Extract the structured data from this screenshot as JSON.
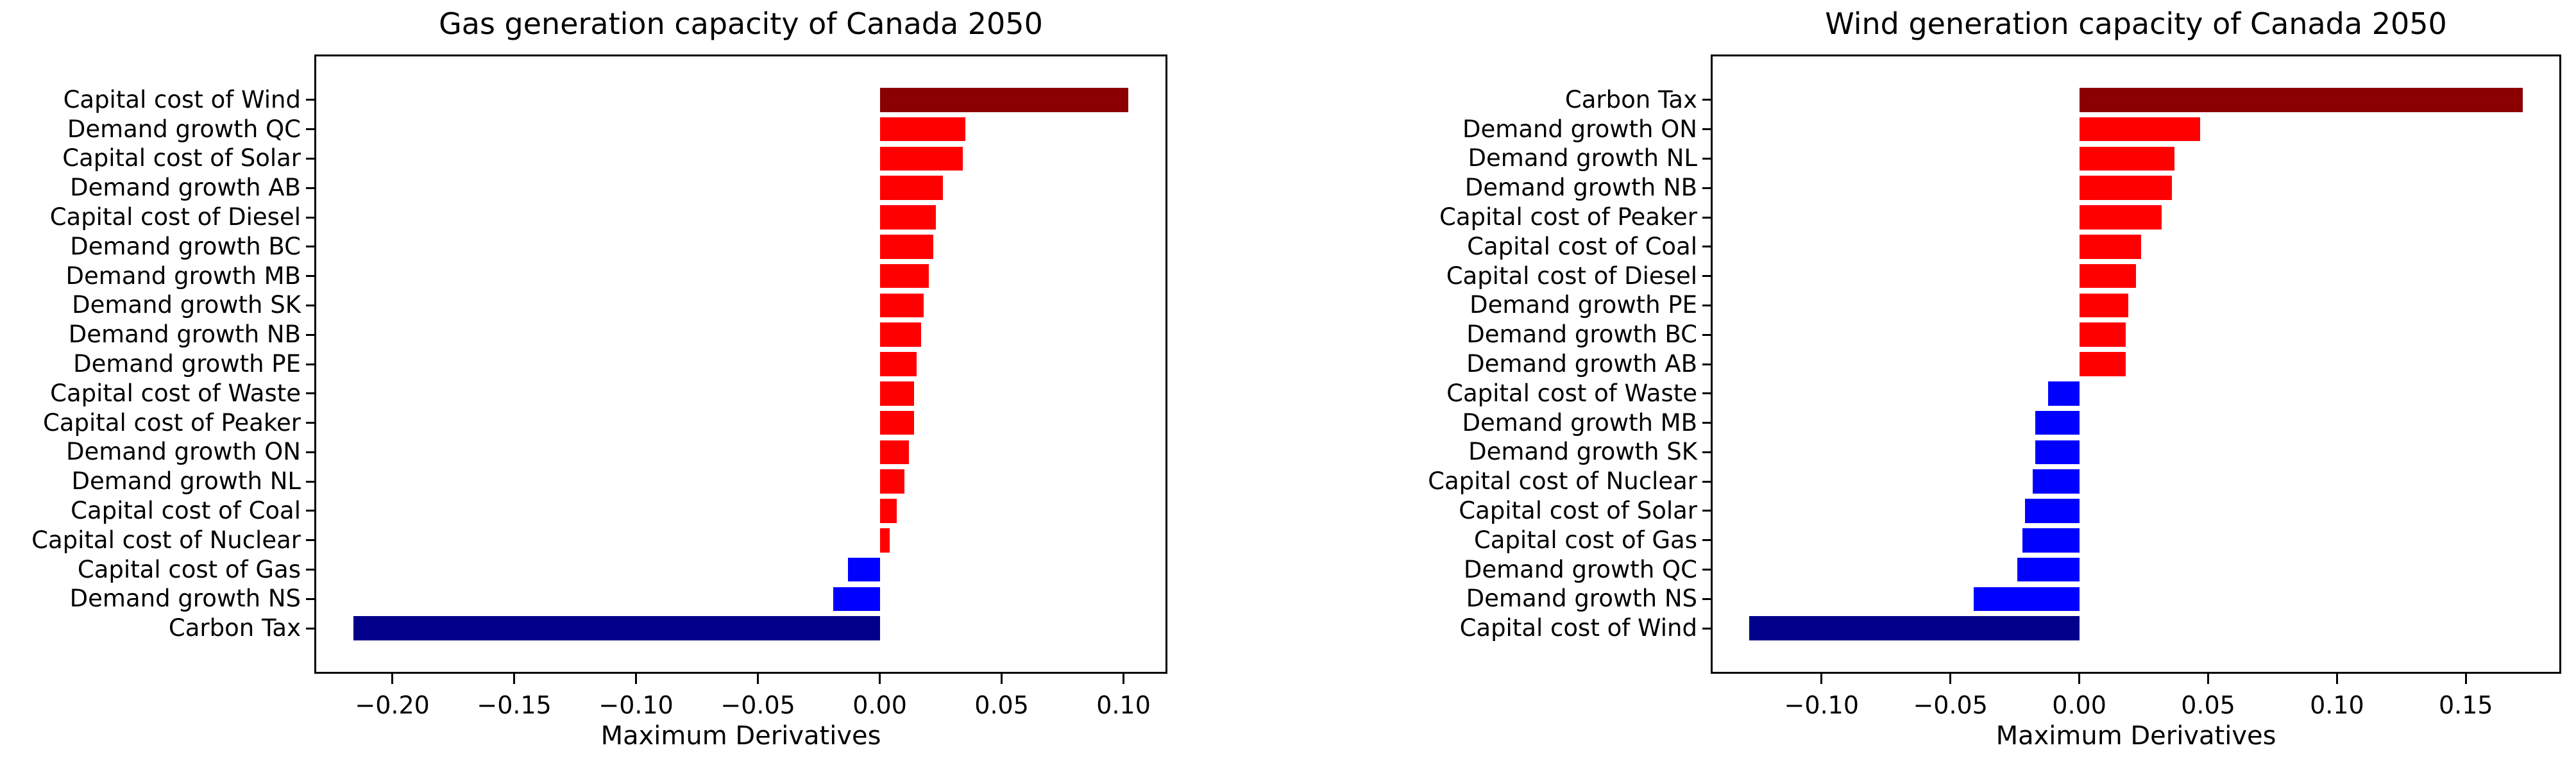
{
  "figure": {
    "background": "#ffffff"
  },
  "palette": {
    "strong_positive": "#8b0000",
    "positive": "#ff0000",
    "negative": "#0000ff",
    "strong_negative": "#00008b",
    "axis": "#000000",
    "text": "#000000"
  },
  "chart_data": [
    {
      "type": "bar",
      "orientation": "horizontal",
      "title": "Gas generation capacity of Canada 2050",
      "xlabel": "Maximum Derivatives",
      "xlim": [
        -0.232,
        0.118
      ],
      "xticks": [
        -0.2,
        -0.15,
        -0.1,
        -0.05,
        0.0,
        0.05,
        0.1
      ],
      "grid": false,
      "legend": false,
      "color_rule": "max bar dark-red, positive bars red, min bar dark-blue, negative bars blue",
      "categories": [
        "Capital cost of Wind",
        "Demand growth QC",
        "Capital cost of Solar",
        "Demand growth AB",
        "Capital cost of Diesel",
        "Demand growth BC",
        "Demand growth MB",
        "Demand growth SK",
        "Demand growth NB",
        "Demand growth PE",
        "Capital cost of Waste",
        "Capital cost of Peaker",
        "Demand growth ON",
        "Demand growth NL",
        "Capital cost of Coal",
        "Capital cost of Nuclear",
        "Capital cost of Gas",
        "Demand growth NS",
        "Carbon Tax"
      ],
      "values": [
        0.102,
        0.035,
        0.034,
        0.026,
        0.023,
        0.022,
        0.02,
        0.018,
        0.017,
        0.015,
        0.014,
        0.014,
        0.012,
        0.01,
        0.007,
        0.004,
        -0.013,
        -0.019,
        -0.216
      ]
    },
    {
      "type": "bar",
      "orientation": "horizontal",
      "title": "Wind generation capacity of Canada 2050",
      "xlabel": "Maximum Derivatives",
      "xlim": [
        -0.143,
        0.187
      ],
      "xticks": [
        -0.1,
        -0.05,
        0.0,
        0.05,
        0.1,
        0.15
      ],
      "grid": false,
      "legend": false,
      "color_rule": "max bar dark-red, positive bars red, min bar dark-blue, negative bars blue",
      "categories": [
        "Carbon Tax",
        "Demand growth ON",
        "Demand growth NL",
        "Demand growth NB",
        "Capital cost of Peaker",
        "Capital cost of Coal",
        "Capital cost of Diesel",
        "Demand growth PE",
        "Demand growth BC",
        "Demand growth AB",
        "Capital cost of Waste",
        "Demand growth MB",
        "Demand growth SK",
        "Capital cost of Nuclear",
        "Capital cost of Solar",
        "Capital cost of Gas",
        "Demand growth QC",
        "Demand growth NS",
        "Capital cost of Wind"
      ],
      "values": [
        0.172,
        0.047,
        0.037,
        0.036,
        0.032,
        0.024,
        0.022,
        0.019,
        0.018,
        0.018,
        -0.012,
        -0.017,
        -0.017,
        -0.018,
        -0.021,
        -0.022,
        -0.024,
        -0.041,
        -0.128
      ]
    }
  ]
}
